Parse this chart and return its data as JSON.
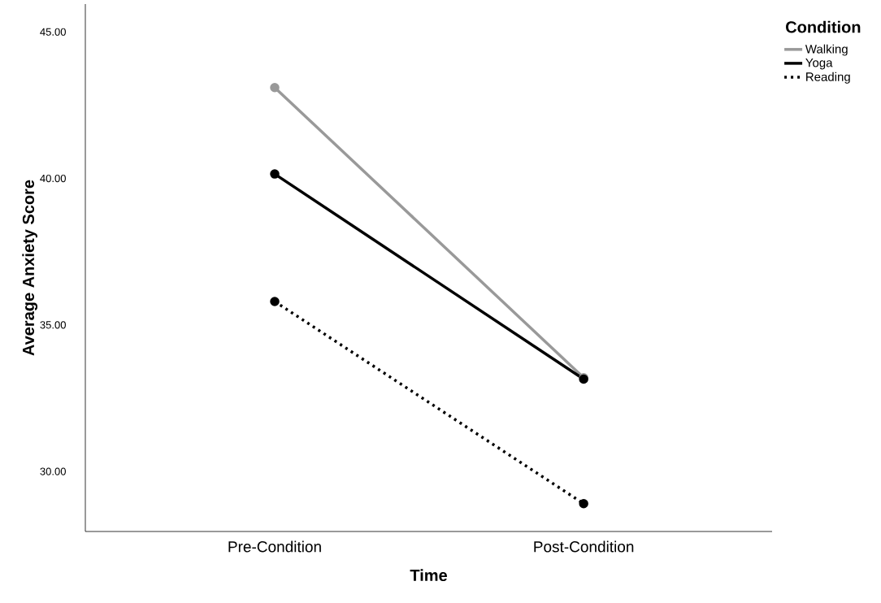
{
  "chart_data": {
    "type": "line",
    "xlabel": "Time",
    "ylabel": "Average Anxiety Score",
    "legend_title": "Condition",
    "categories": [
      "Pre-Condition",
      "Post-Condition"
    ],
    "series": [
      {
        "name": "Walking",
        "color": "#999999",
        "line_style": "solid",
        "values": [
          43.1,
          33.2
        ]
      },
      {
        "name": "Yoga",
        "color": "#000000",
        "line_style": "solid",
        "values": [
          40.15,
          33.15
        ]
      },
      {
        "name": "Reading",
        "color": "#000000",
        "line_style": "dotted",
        "values": [
          35.8,
          28.9
        ]
      }
    ],
    "ylim": [
      27.95,
      45.95
    ],
    "yticks": [
      {
        "value": 30,
        "label": "30.00"
      },
      {
        "value": 35,
        "label": "35.00"
      },
      {
        "value": 40,
        "label": "40.00"
      },
      {
        "value": 45,
        "label": "45.00"
      }
    ],
    "marker": "circle",
    "legend": "top right",
    "grid": false
  }
}
